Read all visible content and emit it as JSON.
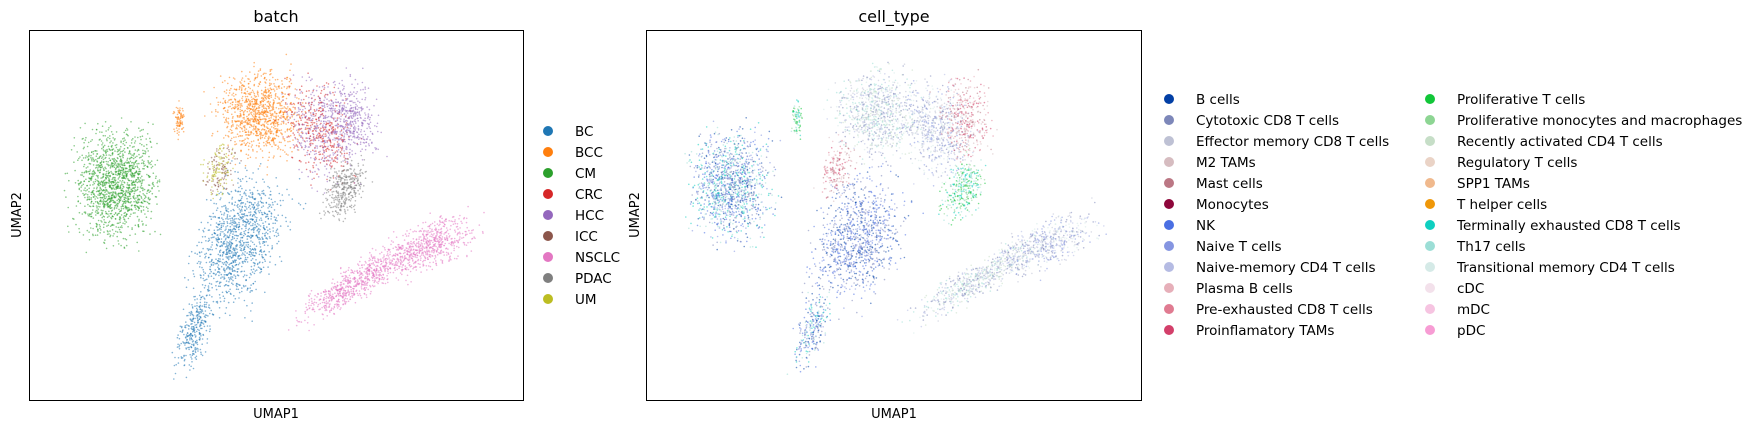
{
  "chart_data": [
    {
      "type": "scatter",
      "title": "batch",
      "xlabel": "UMAP1",
      "ylabel": "UMAP2",
      "ticks": "none",
      "grid": false,
      "legend_placement": "right",
      "legend": [
        {
          "label": "BC",
          "color": "#1f77b4"
        },
        {
          "label": "BCC",
          "color": "#ff7f0e"
        },
        {
          "label": "CM",
          "color": "#2ca02c"
        },
        {
          "label": "CRC",
          "color": "#d62728"
        },
        {
          "label": "HCC",
          "color": "#9467bd"
        },
        {
          "label": "ICC",
          "color": "#8c564b"
        },
        {
          "label": "NSCLC",
          "color": "#e377c2"
        },
        {
          "label": "PDAC",
          "color": "#7f7f7f"
        },
        {
          "label": "UM",
          "color": "#bcbd22"
        }
      ]
    },
    {
      "type": "scatter",
      "title": "cell_type",
      "xlabel": "UMAP1",
      "ylabel": "UMAP2",
      "ticks": "none",
      "grid": false,
      "legend_placement": "right",
      "legend": [
        {
          "label": "B cells",
          "color": "#023fa5"
        },
        {
          "label": "Cytotoxic CD8 T cells",
          "color": "#7d87b9"
        },
        {
          "label": "Effector memory CD8 T cells",
          "color": "#bec1d4"
        },
        {
          "label": "M2 TAMs",
          "color": "#d6bcc0"
        },
        {
          "label": "Mast cells",
          "color": "#bb7784"
        },
        {
          "label": "Monocytes",
          "color": "#8e063b"
        },
        {
          "label": "NK",
          "color": "#4a6fe3"
        },
        {
          "label": "Naive T cells",
          "color": "#8595e1"
        },
        {
          "label": "Naive-memory CD4 T cells",
          "color": "#b5bbe3"
        },
        {
          "label": "Plasma B cells",
          "color": "#e6afb9"
        },
        {
          "label": "Pre-exhausted CD8 T cells",
          "color": "#e07b91"
        },
        {
          "label": "Proinflamatory TAMs",
          "color": "#d33f6a"
        },
        {
          "label": "Proliferative T cells",
          "color": "#11c638"
        },
        {
          "label": "Proliferative monocytes and macrophages",
          "color": "#8dd593"
        },
        {
          "label": "Recently activated CD4 T cells",
          "color": "#c6dec7"
        },
        {
          "label": "Regulatory T cells",
          "color": "#ead3c6"
        },
        {
          "label": "SPP1 TAMs",
          "color": "#f0b98d"
        },
        {
          "label": "T helper cells",
          "color": "#ef9708"
        },
        {
          "label": "Terminally exhausted CD8 T cells",
          "color": "#0fcfc0"
        },
        {
          "label": "Th17 cells",
          "color": "#9cded6"
        },
        {
          "label": "Transitional memory CD4 T cells",
          "color": "#d5eae7"
        },
        {
          "label": "cDC",
          "color": "#f3e1eb"
        },
        {
          "label": "mDC",
          "color": "#f6c4e1"
        },
        {
          "label": "pDC",
          "color": "#f79cd4"
        }
      ]
    }
  ]
}
